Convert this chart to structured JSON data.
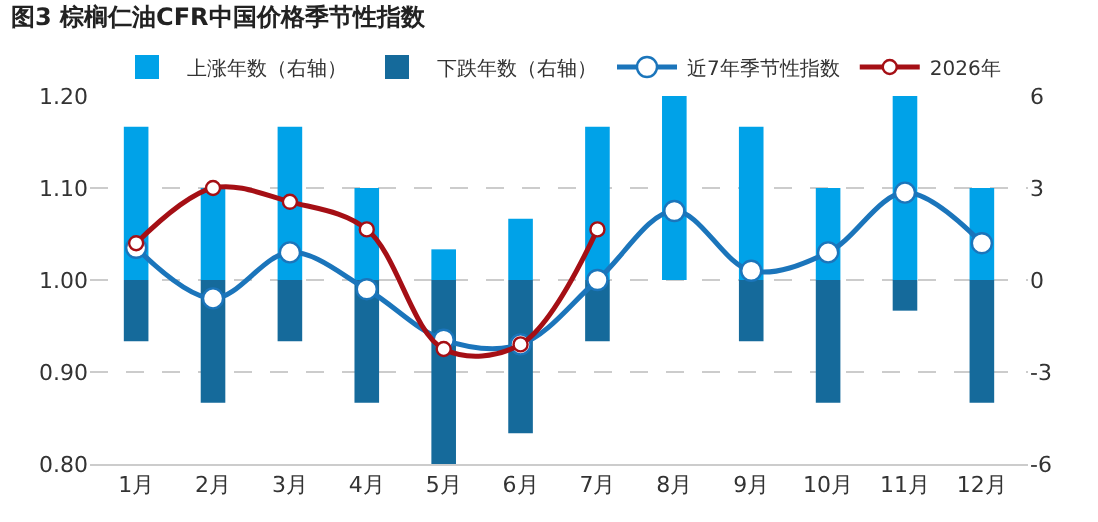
{
  "chart_data": {
    "type": "bar",
    "title": "图3 棕榈仁油CFR中国价格季节性指数",
    "categories": [
      "1月",
      "2月",
      "3月",
      "4月",
      "5月",
      "6月",
      "7月",
      "8月",
      "9月",
      "10月",
      "11月",
      "12月"
    ],
    "stacked": true,
    "series": [
      {
        "name": "上涨年数（右轴）",
        "axis": "y2",
        "color": "#00a2e8",
        "values": [
          5,
          3,
          5,
          3,
          1,
          2,
          5,
          6,
          5,
          3,
          6,
          3
        ]
      },
      {
        "name": "下跌年数（右轴）",
        "axis": "y2",
        "color": "#156a9b",
        "values": [
          -2,
          -4,
          -2,
          -4,
          -6,
          -5,
          -2,
          0,
          -2,
          -4,
          -1,
          -4
        ]
      },
      {
        "name": "近7年季节性指数",
        "type": "line",
        "color": "#1b75bb",
        "marker": "circle",
        "values": [
          1.035,
          0.98,
          1.03,
          0.99,
          0.935,
          0.93,
          1.0,
          1.075,
          1.01,
          1.03,
          1.095,
          1.04
        ]
      },
      {
        "name": "2026年",
        "type": "line",
        "color": "#a50f15",
        "marker": "circle",
        "values": [
          1.04,
          1.1,
          1.085,
          1.055,
          0.925,
          0.93,
          1.055,
          null,
          null,
          null,
          null,
          null
        ]
      }
    ],
    "ylim": [
      0.8,
      1.2
    ],
    "yticks": [
      {
        "value": 0.8,
        "label": "0.80"
      },
      {
        "value": 0.9,
        "label": "0.90"
      },
      {
        "value": 1.0,
        "label": "1.00"
      },
      {
        "value": 1.1,
        "label": "1.10"
      },
      {
        "value": 1.2,
        "label": "1.20"
      }
    ],
    "y2lim": [
      -6,
      6
    ],
    "y2ticks": [
      -6,
      -3,
      0,
      3,
      6
    ],
    "grid": "y",
    "legend": "top"
  }
}
